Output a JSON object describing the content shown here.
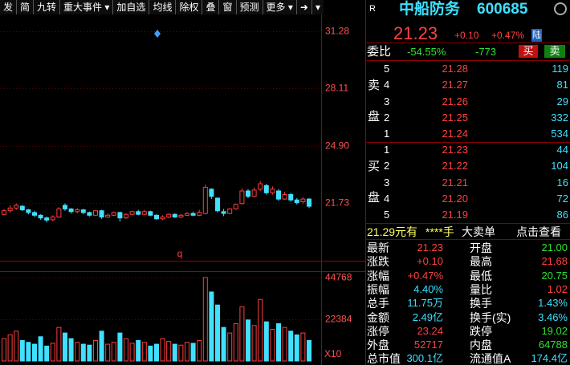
{
  "toolbar": {
    "items": [
      "发",
      "简",
      "九转",
      "重大事件",
      "加自选",
      "均线",
      "除权",
      "叠",
      "窗",
      "预测",
      "更多"
    ]
  },
  "chart_data": {
    "type": "candlestick",
    "ylim": [
      18.52,
      32.13
    ],
    "yticks": [
      31.28,
      28.11,
      {
        "value": 24.9,
        "label": "24.90"
      },
      21.73
    ],
    "candles": [
      [
        21.1,
        21.3,
        21.4,
        21.05
      ],
      [
        21.3,
        21.45,
        21.6,
        21.2
      ],
      [
        21.45,
        21.6,
        21.7,
        21.35
      ],
      [
        21.55,
        21.35,
        21.62,
        21.28
      ],
      [
        21.35,
        21.2,
        21.4,
        21.1
      ],
      [
        21.2,
        21.05,
        21.3,
        20.95
      ],
      [
        21.05,
        20.9,
        21.1,
        20.8
      ],
      [
        20.9,
        20.78,
        20.98,
        20.65
      ],
      [
        20.8,
        20.95,
        21.05,
        20.72
      ],
      [
        20.95,
        21.4,
        21.5,
        20.9
      ],
      [
        21.6,
        21.4,
        21.7,
        21.3
      ],
      [
        21.4,
        21.25,
        21.45,
        21.15
      ],
      [
        21.25,
        21.35,
        21.45,
        21.15
      ],
      [
        21.35,
        21.2,
        21.4,
        21.1
      ],
      [
        21.2,
        21.05,
        21.25,
        20.98
      ],
      [
        21.05,
        21.3,
        21.35,
        21.0
      ],
      [
        21.3,
        20.95,
        21.35,
        20.85
      ],
      [
        20.95,
        21.05,
        21.15,
        20.9
      ],
      [
        21.05,
        21.2,
        21.25,
        21.0
      ],
      [
        21.2,
        20.9,
        21.25,
        20.7
      ],
      [
        20.9,
        21.1,
        21.15,
        20.85
      ],
      [
        21.1,
        21.25,
        21.3,
        21.05
      ],
      [
        21.25,
        21.1,
        21.35,
        21.05
      ],
      [
        21.1,
        21.25,
        21.35,
        21.05
      ],
      [
        21.25,
        21.05,
        21.3,
        21.0
      ],
      [
        21.05,
        20.85,
        21.1,
        20.8
      ],
      [
        20.85,
        20.95,
        21.05,
        20.78
      ],
      [
        20.95,
        21.1,
        21.15,
        20.88
      ],
      [
        21.1,
        20.95,
        21.15,
        20.9
      ],
      [
        20.95,
        21.05,
        21.12,
        20.88
      ],
      [
        21.05,
        21.15,
        21.22,
        21.0
      ],
      [
        21.15,
        21.05,
        21.25,
        21.0
      ],
      [
        21.05,
        21.2,
        21.35,
        21.0
      ],
      [
        21.15,
        22.6,
        22.75,
        21.1
      ],
      [
        22.5,
        22.1,
        22.55,
        21.95
      ],
      [
        22.0,
        21.3,
        22.05,
        21.2
      ],
      [
        21.25,
        21.15,
        21.4,
        21.0
      ],
      [
        21.15,
        21.4,
        21.45,
        21.1
      ],
      [
        21.4,
        21.65,
        21.7,
        21.35
      ],
      [
        21.7,
        22.4,
        22.55,
        21.65
      ],
      [
        22.4,
        22.1,
        22.5,
        22.0
      ],
      [
        22.1,
        22.45,
        22.6,
        22.05
      ],
      [
        22.5,
        22.8,
        22.95,
        22.4
      ],
      [
        22.7,
        22.3,
        22.8,
        22.2
      ],
      [
        22.3,
        22.5,
        22.65,
        22.2
      ],
      [
        22.4,
        21.95,
        22.5,
        21.85
      ],
      [
        21.95,
        22.2,
        22.35,
        21.9
      ],
      [
        22.2,
        21.9,
        22.3,
        21.8
      ],
      [
        21.9,
        21.75,
        22.0,
        21.65
      ],
      [
        21.8,
        21.95,
        22.05,
        21.7
      ],
      [
        21.95,
        21.55,
        22.0,
        21.45
      ]
    ],
    "annotation": "q",
    "volume": {
      "values": [
        12000,
        14000,
        16000,
        11000,
        10000,
        9000,
        13000,
        8000,
        9500,
        18000,
        15000,
        12000,
        10000,
        9000,
        8500,
        11000,
        16000,
        9000,
        10000,
        15000,
        12000,
        9500,
        11000,
        10000,
        8000,
        9000,
        12000,
        10500,
        9000,
        8500,
        10000,
        9500,
        11000,
        44768,
        37000,
        30000,
        18000,
        15000,
        20000,
        29000,
        22000,
        19000,
        33000,
        21000,
        17000,
        20000,
        18000,
        16000,
        14000,
        15000,
        11000
      ],
      "ylim": [
        0,
        47300
      ],
      "yticks": [
        22384,
        44768
      ],
      "scale_label": "X10"
    }
  },
  "quote": {
    "market": "R",
    "name": "中船防务",
    "code": "600685",
    "price": "21.23",
    "change": "+0.10",
    "change_pct": "+0.47%",
    "badge": "陆"
  },
  "weibi": {
    "label": "委比",
    "pct": "-54.55%",
    "diff": "-773",
    "buy": "买",
    "sell": "卖"
  },
  "asks": {
    "side": [
      "卖",
      "盘"
    ],
    "rows": [
      [
        "5",
        "21.28",
        "119"
      ],
      [
        "4",
        "21.27",
        "81"
      ],
      [
        "3",
        "21.26",
        "29"
      ],
      [
        "2",
        "21.25",
        "332"
      ],
      [
        "1",
        "21.24",
        "534"
      ]
    ]
  },
  "bids": {
    "side": [
      "买",
      "盘"
    ],
    "rows": [
      [
        "1",
        "21.23",
        "44"
      ],
      [
        "2",
        "21.22",
        "104"
      ],
      [
        "3",
        "21.21",
        "16"
      ],
      [
        "4",
        "21.20",
        "72"
      ],
      [
        "5",
        "21.19",
        "86"
      ]
    ]
  },
  "notice": [
    "21.29元有",
    "****手",
    "大卖单",
    "点击查看"
  ],
  "stats": {
    "rows": [
      [
        "最新",
        "21.23",
        "开盘",
        "21.00"
      ],
      [
        "涨跌",
        "+0.10",
        "最高",
        "21.68"
      ],
      [
        "涨幅",
        "+0.47%",
        "最低",
        "20.75"
      ],
      [
        "振幅",
        "4.40%",
        "量比",
        "1.02"
      ],
      [
        "总手",
        "11.75万",
        "换手",
        "1.43%"
      ],
      [
        "金额",
        "2.49亿",
        "换手(实)",
        "3.46%"
      ],
      [
        "涨停",
        "23.24",
        "跌停",
        "19.02"
      ],
      [
        "外盘",
        "52717",
        "内盘",
        "64788"
      ],
      [
        "总市值",
        "300.1亿",
        "流通值A",
        "174.4亿"
      ]
    ]
  }
}
